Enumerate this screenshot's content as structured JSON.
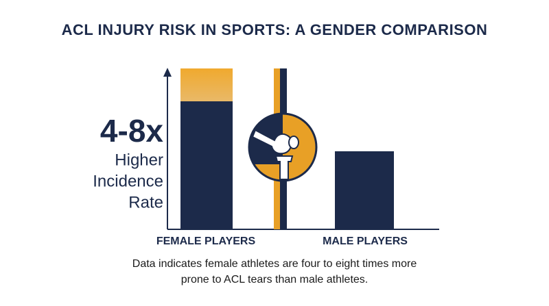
{
  "title": "ACL INJURY RISK IN SPORTS: A GENDER COMPARISON",
  "highlight": {
    "figure": "4-8x",
    "lines": [
      "Higher",
      "Incidence",
      "Rate"
    ]
  },
  "categories": [
    "FEMALE PLAYERS",
    "MALE PLAYERS"
  ],
  "caption": [
    "Data indicates female athletes are four to eight times more",
    "prone to ACL tears than male athletes."
  ]
}
